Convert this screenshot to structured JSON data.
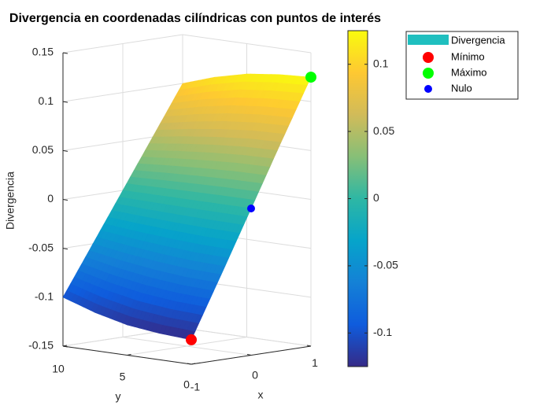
{
  "chart_data": {
    "type": "surface3d",
    "title": "Divergencia en coordenadas cilíndricas con puntos de interés",
    "xlabel": "x",
    "ylabel": "y",
    "zlabel": "Divergencia",
    "xlim": [
      -1,
      1
    ],
    "ylim": [
      0,
      10
    ],
    "zlim": [
      -0.15,
      0.15
    ],
    "xticks": [
      -1,
      0,
      1
    ],
    "yticks": [
      0,
      5,
      10
    ],
    "zticks": [
      -0.15,
      -0.1,
      -0.05,
      0,
      0.05,
      0.1,
      0.15
    ],
    "grid": true,
    "colormap": [
      "#352a87",
      "#0f5cdd",
      "#1481d6",
      "#06a4ca",
      "#2eb7a4",
      "#87bf77",
      "#d1bb59",
      "#fec832",
      "#f9fb0e"
    ],
    "clim": [
      -0.125,
      0.125
    ],
    "colorbar_ticks": [
      -0.1,
      -0.05,
      0,
      0.05,
      0.1
    ],
    "surface": {
      "name": "Divergencia",
      "legend_color": "#1fbfbf",
      "x": [
        -1,
        -0.5,
        0,
        0.5,
        1
      ],
      "y": [
        0,
        2.5,
        5,
        7.5,
        10
      ],
      "z": [
        [
          -0.125,
          -0.063,
          0,
          0.063,
          0.125
        ],
        [
          -0.123,
          -0.062,
          0,
          0.062,
          0.123
        ],
        [
          -0.119,
          -0.059,
          0,
          0.059,
          0.119
        ],
        [
          -0.111,
          -0.055,
          0,
          0.055,
          0.111
        ],
        [
          -0.1,
          -0.05,
          0,
          0.05,
          0.1
        ]
      ]
    },
    "points": [
      {
        "name": "Mínimo",
        "color": "#ff0000",
        "x": -1,
        "y": 0,
        "z": -0.125,
        "size": 7
      },
      {
        "name": "Máximo",
        "color": "#00ff00",
        "x": 1,
        "y": 0,
        "z": 0.125,
        "size": 7
      },
      {
        "name": "Nulo",
        "color": "#0000ff",
        "x": 0,
        "y": 0,
        "z": 0,
        "size": 5
      }
    ],
    "legend": "northeast"
  }
}
